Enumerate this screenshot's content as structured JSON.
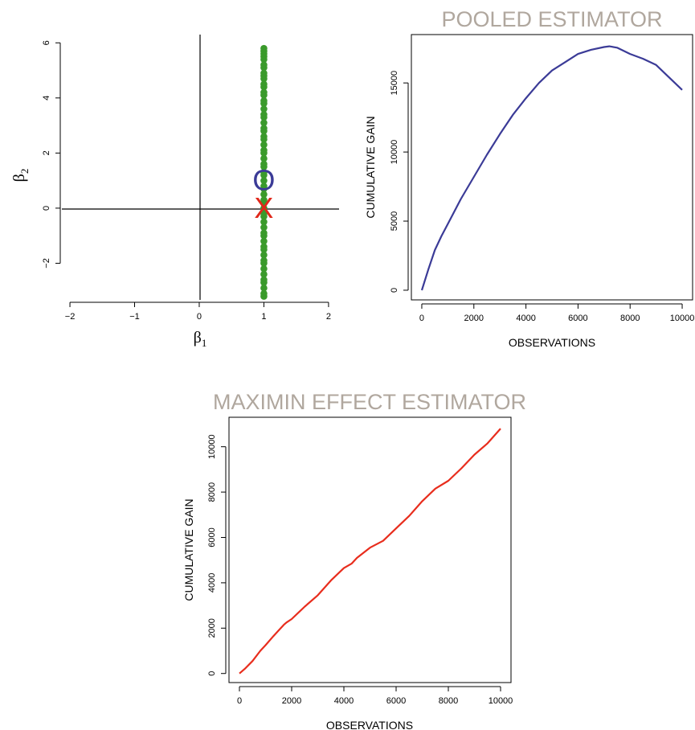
{
  "colors": {
    "points": "#3a9a2b",
    "pooled_marker": "#3b3b97",
    "maximin_marker": "#e0281a",
    "pooled_line": "#3b3b97",
    "maximin_line": "#e82d1d",
    "title": "#b0a79e"
  },
  "chart_data": [
    {
      "id": "scatter",
      "type": "scatter",
      "xlabel_symbol": "β",
      "xlabel_sub": "1",
      "ylabel_symbol": "β",
      "ylabel_sub": "2",
      "xlim": [
        -2.1,
        2.2
      ],
      "ylim": [
        -3.3,
        6.3
      ],
      "xticks": [
        -2,
        -1,
        0,
        1,
        2
      ],
      "xtick_labels": [
        "−2",
        "−1",
        "0",
        "1",
        "2"
      ],
      "yticks": [
        -2,
        0,
        2,
        4,
        6
      ],
      "ytick_labels": [
        "−2",
        "0",
        "2",
        "4",
        "6"
      ],
      "reference_lines": {
        "x": 0,
        "y": 0
      },
      "points": {
        "x": 1,
        "y": [
          5.8,
          5.7,
          5.6,
          5.5,
          5.4,
          5.2,
          5.1,
          4.9,
          4.8,
          4.7,
          4.5,
          4.4,
          4.2,
          4.1,
          3.9,
          3.8,
          3.6,
          3.4,
          3.3,
          3.1,
          2.9,
          2.8,
          2.6,
          2.5,
          2.3,
          2.1,
          2.0,
          1.8,
          1.6,
          1.5,
          1.3,
          1.2,
          1.0,
          0.8,
          0.7,
          0.5,
          0.3,
          0.2,
          0.0,
          -0.2,
          -0.3,
          -0.5,
          -0.7,
          -0.9,
          -1.0,
          -1.2,
          -1.4,
          -1.5,
          -1.7,
          -1.9,
          -2.0,
          -2.2,
          -2.4,
          -2.6,
          -2.7,
          -2.9,
          -3.1,
          -3.2
        ]
      },
      "markers": [
        {
          "label": "O",
          "x": 1,
          "y": 1
        },
        {
          "label": "X",
          "x": 1,
          "y": 0
        }
      ]
    },
    {
      "id": "pooled",
      "type": "line",
      "title": "POOLED ESTIMATOR",
      "xlabel": "OBSERVATIONS",
      "ylabel": "CUMULATIVE GAIN",
      "xlim": [
        -400,
        10400
      ],
      "ylim": [
        -700,
        18500
      ],
      "xticks": [
        0,
        2000,
        4000,
        6000,
        8000,
        10000
      ],
      "yticks": [
        0,
        5000,
        10000,
        15000
      ],
      "x": [
        0,
        250,
        500,
        750,
        1000,
        1500,
        2000,
        2500,
        3000,
        3500,
        4000,
        4500,
        5000,
        5500,
        6000,
        6500,
        7000,
        7200,
        7500,
        8000,
        8500,
        9000,
        9500,
        10000
      ],
      "y": [
        0,
        1500,
        2900,
        3900,
        4800,
        6600,
        8200,
        9800,
        11300,
        12700,
        13900,
        15000,
        15900,
        16500,
        17100,
        17400,
        17600,
        17650,
        17550,
        17100,
        16750,
        16300,
        15400,
        14500
      ]
    },
    {
      "id": "maximin",
      "type": "line",
      "title": "MAXIMIN EFFECT ESTIMATOR",
      "xlabel": "OBSERVATIONS",
      "ylabel": "CUMULATIVE GAIN",
      "xlim": [
        -400,
        10400
      ],
      "ylim": [
        -400,
        11300
      ],
      "xticks": [
        0,
        2000,
        4000,
        6000,
        8000,
        10000
      ],
      "yticks": [
        0,
        2000,
        4000,
        6000,
        8000,
        10000
      ],
      "x": [
        0,
        200,
        500,
        800,
        1000,
        1300,
        1500,
        1700,
        1800,
        2000,
        2500,
        3000,
        3500,
        4000,
        4300,
        4500,
        5000,
        5500,
        6000,
        6500,
        7000,
        7500,
        8000,
        8500,
        9000,
        9500,
        10000
      ],
      "y": [
        0,
        200,
        550,
        1000,
        1250,
        1650,
        1900,
        2150,
        2250,
        2400,
        2950,
        3450,
        4100,
        4650,
        4850,
        5100,
        5550,
        5850,
        6400,
        6950,
        7600,
        8150,
        8500,
        9050,
        9650,
        10150,
        10800
      ]
    }
  ]
}
